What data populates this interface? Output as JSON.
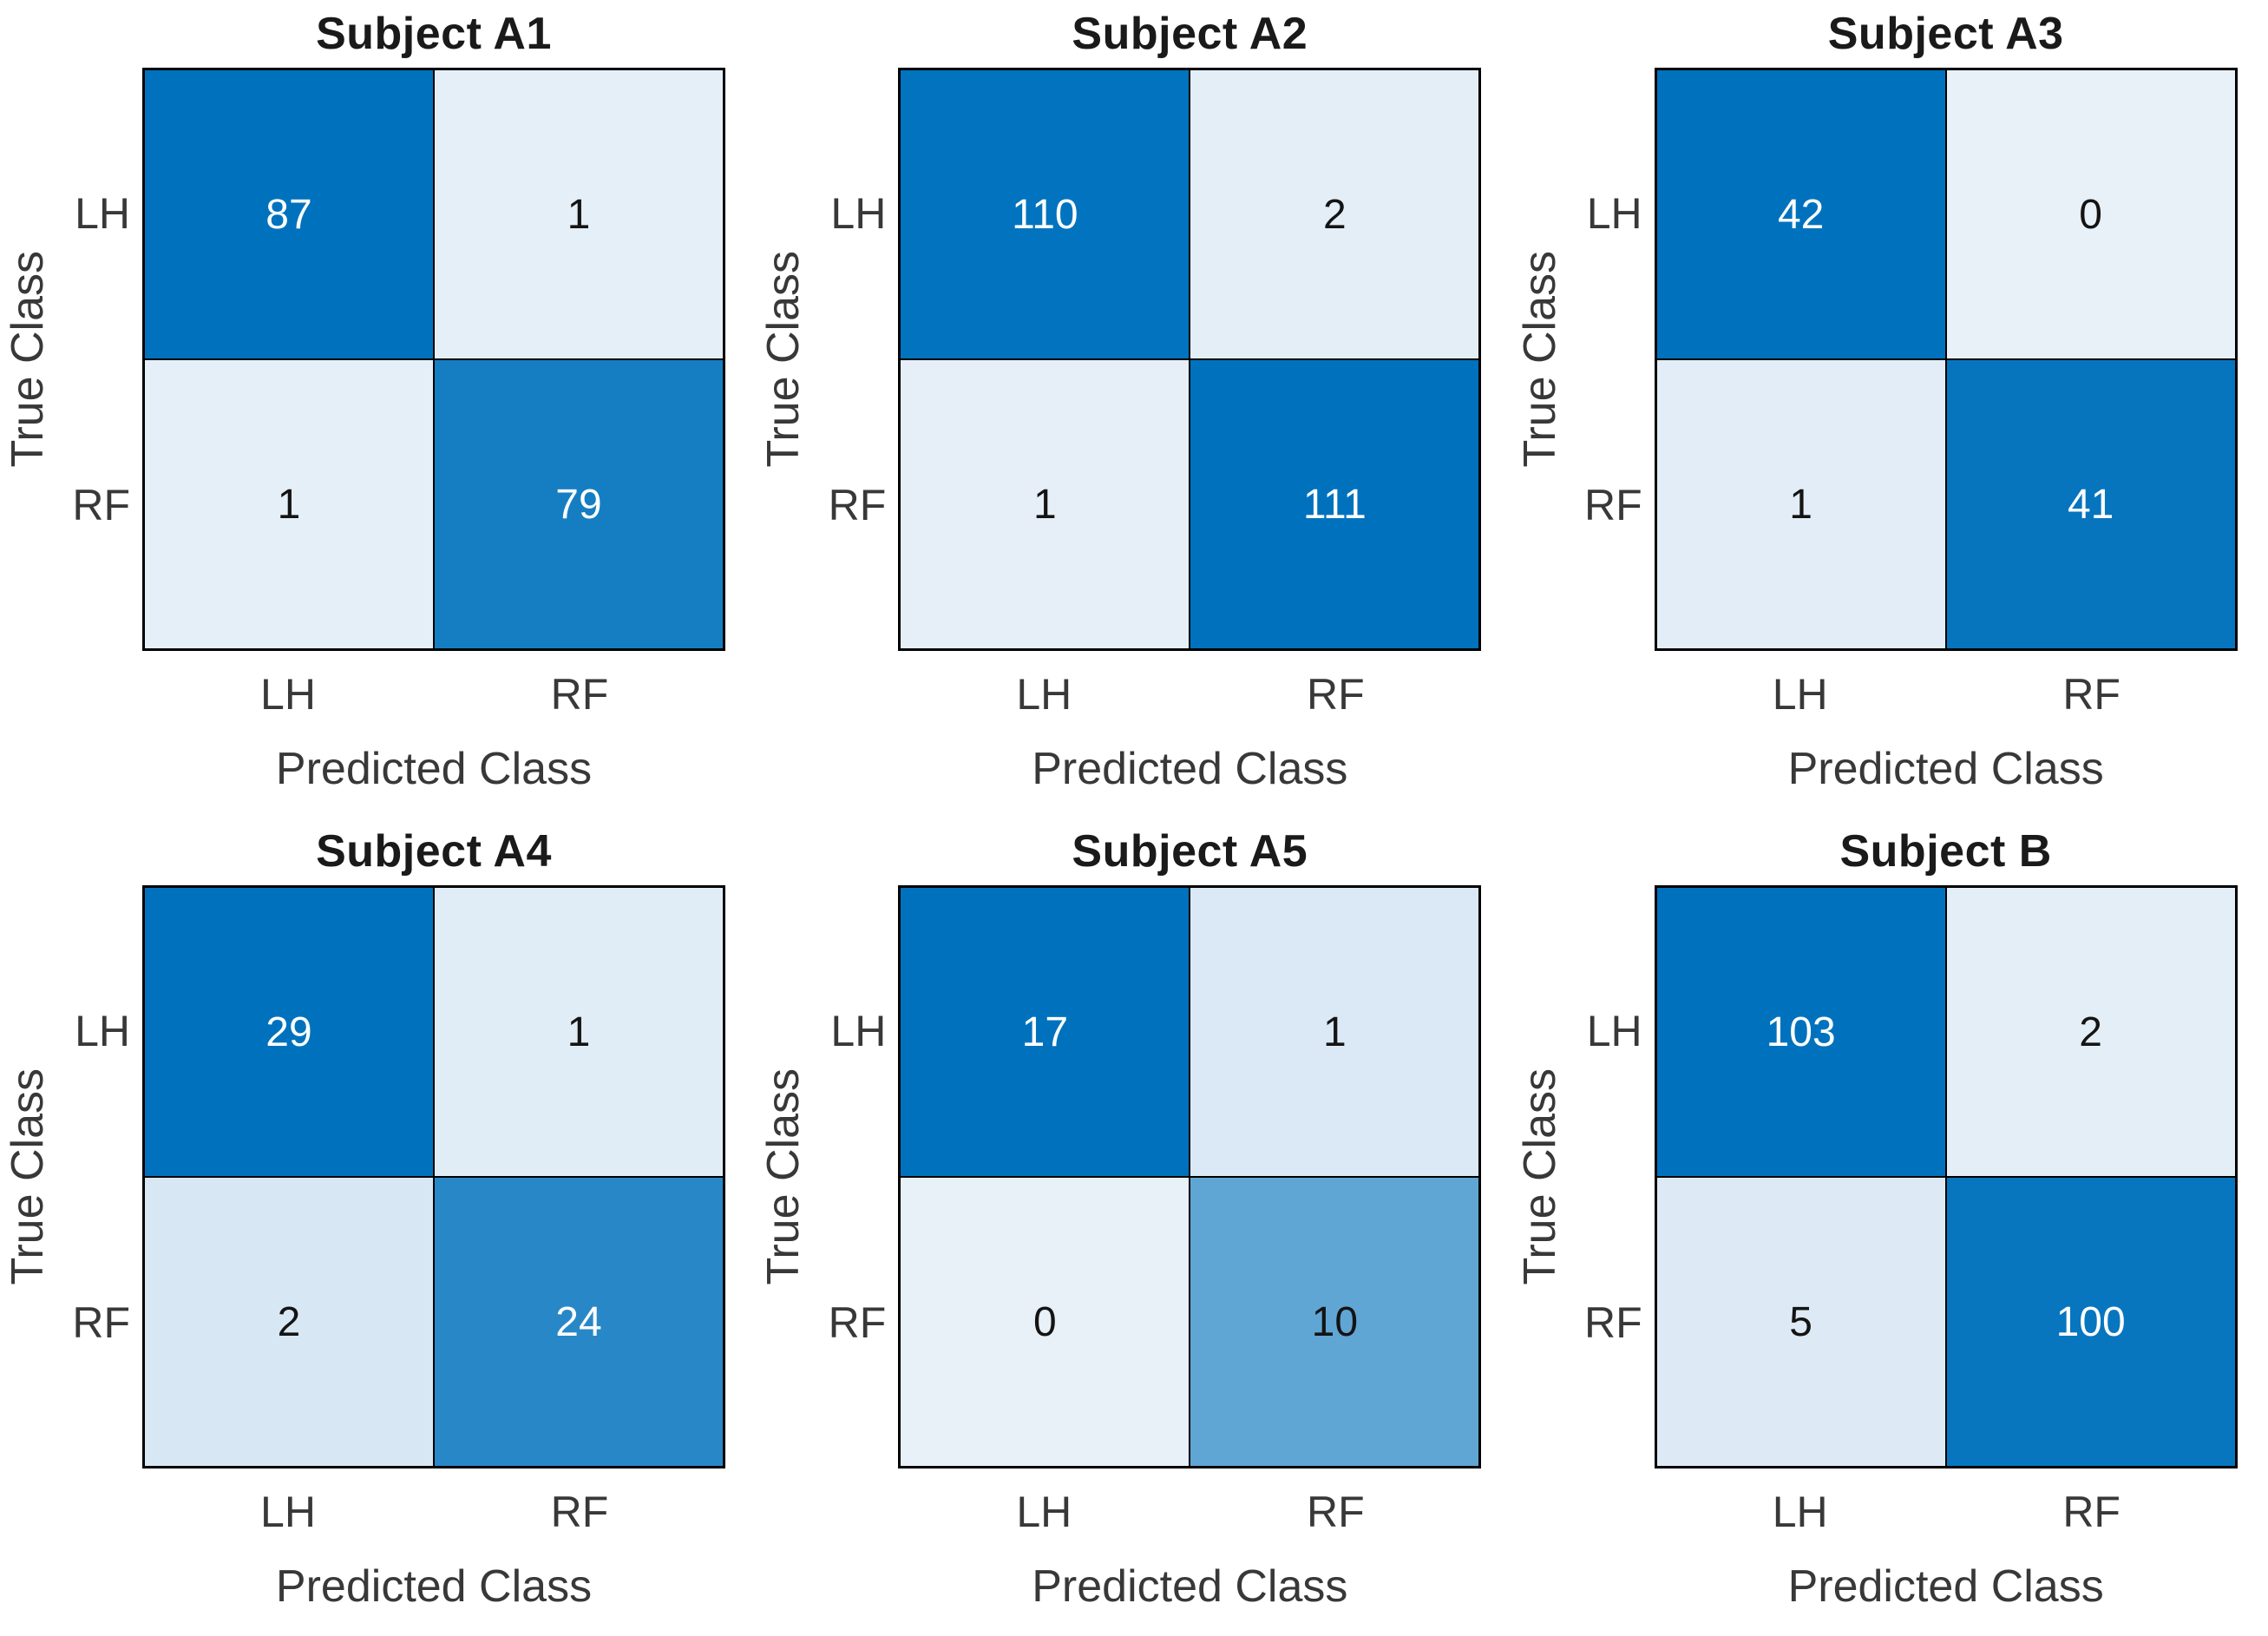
{
  "figure": {
    "background": "#ffffff",
    "shared_xlabel": "Predicted Class",
    "shared_ylabel": "True Class",
    "classes": [
      "LH",
      "RF"
    ]
  },
  "colors": {
    "cell_high": "#0072bd",
    "cell_low": "#e8f0f8",
    "grid_line": "#000000",
    "text_on_dark": "#ffffff",
    "text_on_light": "#141414",
    "title_text": "#1a1a1a",
    "axis_text": "#383838"
  },
  "color_scale": {
    "low": "#e8f0f8",
    "high": "#0072bd",
    "normalize": "per-chart-max",
    "text_dark_threshold": 0.65
  },
  "chart_data": [
    {
      "type": "heatmap",
      "title": "Subject A1",
      "xlabel": "Predicted Class",
      "ylabel": "True Class",
      "x_categories": [
        "LH",
        "RF"
      ],
      "y_categories": [
        "LH",
        "RF"
      ],
      "matrix": [
        [
          87,
          1
        ],
        [
          1,
          79
        ]
      ]
    },
    {
      "type": "heatmap",
      "title": "Subject A2",
      "xlabel": "Predicted Class",
      "ylabel": "True Class",
      "x_categories": [
        "LH",
        "RF"
      ],
      "y_categories": [
        "LH",
        "RF"
      ],
      "matrix": [
        [
          110,
          2
        ],
        [
          1,
          111
        ]
      ]
    },
    {
      "type": "heatmap",
      "title": "Subject A3",
      "xlabel": "Predicted Class",
      "ylabel": "True Class",
      "x_categories": [
        "LH",
        "RF"
      ],
      "y_categories": [
        "LH",
        "RF"
      ],
      "matrix": [
        [
          42,
          0
        ],
        [
          1,
          41
        ]
      ]
    },
    {
      "type": "heatmap",
      "title": "Subject A4",
      "xlabel": "Predicted Class",
      "ylabel": "True Class",
      "x_categories": [
        "LH",
        "RF"
      ],
      "y_categories": [
        "LH",
        "RF"
      ],
      "matrix": [
        [
          29,
          1
        ],
        [
          2,
          24
        ]
      ]
    },
    {
      "type": "heatmap",
      "title": "Subject A5",
      "xlabel": "Predicted Class",
      "ylabel": "True Class",
      "x_categories": [
        "LH",
        "RF"
      ],
      "y_categories": [
        "LH",
        "RF"
      ],
      "matrix": [
        [
          17,
          1
        ],
        [
          0,
          10
        ]
      ]
    },
    {
      "type": "heatmap",
      "title": "Subject B",
      "xlabel": "Predicted Class",
      "ylabel": "True Class",
      "x_categories": [
        "LH",
        "RF"
      ],
      "y_categories": [
        "LH",
        "RF"
      ],
      "matrix": [
        [
          103,
          2
        ],
        [
          5,
          100
        ]
      ]
    }
  ]
}
